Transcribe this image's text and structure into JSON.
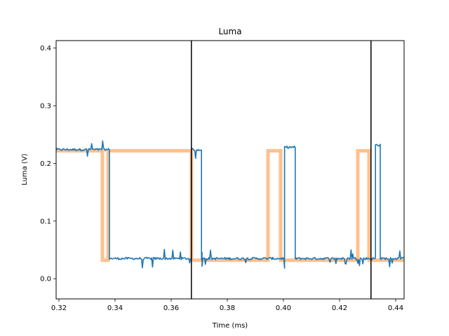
{
  "chart_data": {
    "type": "line",
    "title": "Luma",
    "xlabel": "Time (ms)",
    "ylabel": "Luma (V)",
    "xlim": [
      0.319,
      0.443
    ],
    "ylim": [
      -0.035,
      0.413
    ],
    "xticks": [
      0.32,
      0.34,
      0.36,
      0.38,
      0.4,
      0.42,
      0.44
    ],
    "xtick_labels": [
      "0.32",
      "0.34",
      "0.36",
      "0.38",
      "0.40",
      "0.42",
      "0.44"
    ],
    "yticks": [
      0.0,
      0.1,
      0.2,
      0.3,
      0.4
    ],
    "ytick_labels": [
      "0.0",
      "0.1",
      "0.2",
      "0.3",
      "0.4"
    ],
    "grid": false,
    "colors": {
      "measured": "#1f77b4",
      "expected": "#ffc08e",
      "marker": "#000000"
    },
    "series": [
      {
        "role": "measured",
        "x": [
          0.319,
          0.338,
          0.338,
          0.3672,
          0.3672,
          0.3708,
          0.3708,
          0.371,
          0.371,
          0.4004,
          0.4004,
          0.4042,
          0.4042,
          0.4046,
          0.4046,
          0.4328,
          0.4328,
          0.4345,
          0.4345,
          0.443
        ],
        "y": [
          0.224,
          0.224,
          0.035,
          0.035,
          0.224,
          0.224,
          0.035,
          0.035,
          0.035,
          0.035,
          0.228,
          0.228,
          0.035,
          0.035,
          0.035,
          0.035,
          0.232,
          0.232,
          0.035,
          0.035
        ],
        "noise": 0.006
      },
      {
        "role": "expected",
        "x": [
          0.319,
          0.3355,
          0.3355,
          0.3375,
          0.3375,
          0.3672,
          0.3672,
          0.3945,
          0.3945,
          0.399,
          0.399,
          0.4265,
          0.4265,
          0.4305,
          0.4305,
          0.443
        ],
        "y": [
          0.222,
          0.222,
          0.032,
          0.032,
          0.222,
          0.222,
          0.032,
          0.032,
          0.222,
          0.222,
          0.032,
          0.032,
          0.222,
          0.222,
          0.032,
          0.032
        ]
      }
    ],
    "vlines": [
      0.3672,
      0.4312
    ]
  }
}
